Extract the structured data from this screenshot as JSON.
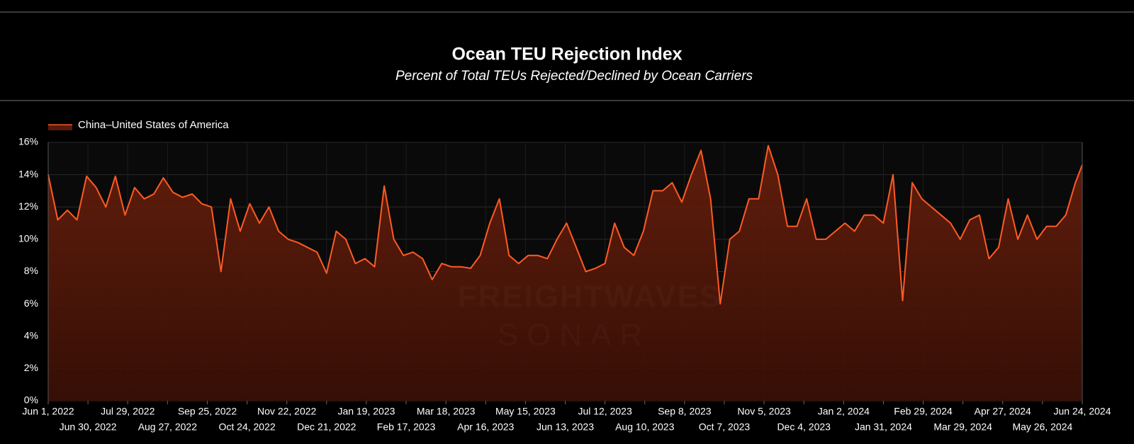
{
  "chart_data": {
    "type": "area",
    "title": "Ocean TEU Rejection Index",
    "subtitle": "Percent of Total TEUs Rejected/Declined by Ocean Carriers",
    "watermark": [
      "FREIGHTWAVES",
      "SONAR"
    ],
    "legend": "top-left",
    "grid": true,
    "x": [
      "2022-06-01",
      "2022-06-08",
      "2022-06-15",
      "2022-06-22",
      "2022-06-29",
      "2022-07-06",
      "2022-07-13",
      "2022-07-20",
      "2022-07-27",
      "2022-08-03",
      "2022-08-10",
      "2022-08-17",
      "2022-08-24",
      "2022-08-31",
      "2022-09-07",
      "2022-09-14",
      "2022-09-21",
      "2022-09-28",
      "2022-10-05",
      "2022-10-12",
      "2022-10-19",
      "2022-10-26",
      "2022-11-02",
      "2022-11-09",
      "2022-11-16",
      "2022-11-23",
      "2022-11-30",
      "2022-12-07",
      "2022-12-14",
      "2022-12-21",
      "2022-12-28",
      "2023-01-04",
      "2023-01-11",
      "2023-01-18",
      "2023-01-25",
      "2023-02-01",
      "2023-02-08",
      "2023-02-15",
      "2023-02-22",
      "2023-03-01",
      "2023-03-08",
      "2023-03-15",
      "2023-03-22",
      "2023-03-29",
      "2023-04-05",
      "2023-04-12",
      "2023-04-19",
      "2023-04-26",
      "2023-05-03",
      "2023-05-10",
      "2023-05-17",
      "2023-05-24",
      "2023-05-31",
      "2023-06-07",
      "2023-06-14",
      "2023-06-21",
      "2023-06-28",
      "2023-07-05",
      "2023-07-12",
      "2023-07-19",
      "2023-07-26",
      "2023-08-02",
      "2023-08-09",
      "2023-08-16",
      "2023-08-23",
      "2023-08-30",
      "2023-09-06",
      "2023-09-13",
      "2023-09-20",
      "2023-09-27",
      "2023-10-04",
      "2023-10-11",
      "2023-10-18",
      "2023-10-25",
      "2023-11-01",
      "2023-11-08",
      "2023-11-15",
      "2023-11-22",
      "2023-11-29",
      "2023-12-06",
      "2023-12-13",
      "2023-12-20",
      "2023-12-27",
      "2024-01-03",
      "2024-01-10",
      "2024-01-17",
      "2024-01-24",
      "2024-01-31",
      "2024-02-07",
      "2024-02-14",
      "2024-02-21",
      "2024-02-28",
      "2024-03-06",
      "2024-03-13",
      "2024-03-20",
      "2024-03-27",
      "2024-04-03",
      "2024-04-10",
      "2024-04-17",
      "2024-04-24",
      "2024-05-01",
      "2024-05-08",
      "2024-05-15",
      "2024-05-22",
      "2024-05-29",
      "2024-06-05",
      "2024-06-12",
      "2024-06-19",
      "2024-06-24"
    ],
    "series": [
      {
        "name": "China–United States of America",
        "color": "#ff5a24",
        "values": [
          14.0,
          11.2,
          11.8,
          11.2,
          13.9,
          13.2,
          12.0,
          13.9,
          11.5,
          13.2,
          12.5,
          12.8,
          13.8,
          12.9,
          12.6,
          12.8,
          12.2,
          12.0,
          8.0,
          12.5,
          10.5,
          12.2,
          11.0,
          12.0,
          10.5,
          10.0,
          9.8,
          9.5,
          9.2,
          7.9,
          10.5,
          10.0,
          8.5,
          8.8,
          8.3,
          13.3,
          10.0,
          9.0,
          9.2,
          8.8,
          7.5,
          8.5,
          8.3,
          8.3,
          8.2,
          9.0,
          11.0,
          12.5,
          9.0,
          8.5,
          9.0,
          9.0,
          8.8,
          10.0,
          11.0,
          9.5,
          8.0,
          8.2,
          8.5,
          11.0,
          9.5,
          9.0,
          10.5,
          13.0,
          13.0,
          13.5,
          12.3,
          14.0,
          15.5,
          12.5,
          6.0,
          10.0,
          10.5,
          12.5,
          12.5,
          15.8,
          14.0,
          10.8,
          10.8,
          12.5,
          10.0,
          10.0,
          10.5,
          11.0,
          10.5,
          11.5,
          11.5,
          11.0,
          14.0,
          6.2,
          13.5,
          12.5,
          12.0,
          11.5,
          11.0,
          10.0,
          11.2,
          11.5,
          8.8,
          9.5,
          12.5,
          10.0,
          11.5,
          10.0,
          10.8,
          10.8,
          11.5,
          13.5,
          14.6
        ]
      }
    ],
    "xlim": [
      "2022-06-01",
      "2024-06-24"
    ],
    "xticks": [
      {
        "value": "2022-06-01",
        "label": "Jun 1, 2022"
      },
      {
        "value": "2022-06-30",
        "label": "Jun 30, 2022"
      },
      {
        "value": "2022-07-29",
        "label": "Jul 29, 2022"
      },
      {
        "value": "2022-08-27",
        "label": "Aug 27, 2022"
      },
      {
        "value": "2022-09-25",
        "label": "Sep 25, 2022"
      },
      {
        "value": "2022-10-24",
        "label": "Oct 24, 2022"
      },
      {
        "value": "2022-11-22",
        "label": "Nov 22, 2022"
      },
      {
        "value": "2022-12-21",
        "label": "Dec 21, 2022"
      },
      {
        "value": "2023-01-19",
        "label": "Jan 19, 2023"
      },
      {
        "value": "2023-02-17",
        "label": "Feb 17, 2023"
      },
      {
        "value": "2023-03-18",
        "label": "Mar 18, 2023"
      },
      {
        "value": "2023-04-16",
        "label": "Apr 16, 2023"
      },
      {
        "value": "2023-05-15",
        "label": "May 15, 2023"
      },
      {
        "value": "2023-06-13",
        "label": "Jun 13, 2023"
      },
      {
        "value": "2023-07-12",
        "label": "Jul 12, 2023"
      },
      {
        "value": "2023-08-10",
        "label": "Aug 10, 2023"
      },
      {
        "value": "2023-09-08",
        "label": "Sep 8, 2023"
      },
      {
        "value": "2023-10-07",
        "label": "Oct 7, 2023"
      },
      {
        "value": "2023-11-05",
        "label": "Nov 5, 2023"
      },
      {
        "value": "2023-12-04",
        "label": "Dec 4, 2023"
      },
      {
        "value": "2024-01-02",
        "label": "Jan 2, 2024"
      },
      {
        "value": "2024-01-31",
        "label": "Jan 31, 2024"
      },
      {
        "value": "2024-02-29",
        "label": "Feb 29, 2024"
      },
      {
        "value": "2024-03-29",
        "label": "Mar 29, 2024"
      },
      {
        "value": "2024-04-27",
        "label": "Apr 27, 2024"
      },
      {
        "value": "2024-05-26",
        "label": "May 26, 2024"
      },
      {
        "value": "2024-06-24",
        "label": "Jun 24, 2024"
      }
    ],
    "ylim": [
      0,
      16
    ],
    "yticks": [
      {
        "value": 0,
        "label": "0%"
      },
      {
        "value": 2,
        "label": "2%"
      },
      {
        "value": 4,
        "label": "4%"
      },
      {
        "value": 6,
        "label": "6%"
      },
      {
        "value": 8,
        "label": "8%"
      },
      {
        "value": 10,
        "label": "10%"
      },
      {
        "value": 12,
        "label": "12%"
      },
      {
        "value": 14,
        "label": "14%"
      },
      {
        "value": 16,
        "label": "16%"
      }
    ]
  }
}
